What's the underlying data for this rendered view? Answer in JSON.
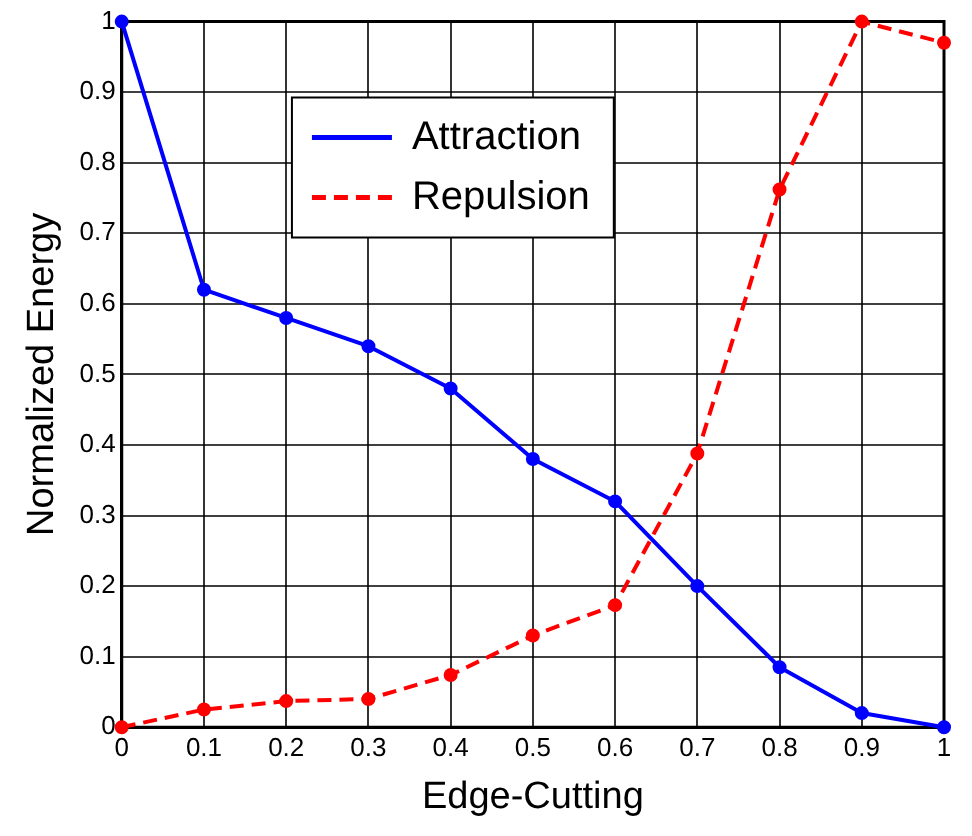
{
  "chart_data": {
    "type": "line",
    "xlabel": "Edge-Cutting",
    "ylabel": "Normalized Energy",
    "x": [
      0,
      0.1,
      0.2,
      0.3,
      0.4,
      0.5,
      0.6,
      0.7,
      0.8,
      0.9,
      1
    ],
    "series": [
      {
        "name": "Attraction",
        "color": "#0000ff",
        "line_style": "solid",
        "values": [
          1,
          0.62,
          0.58,
          0.54,
          0.48,
          0.38,
          0.32,
          0.2,
          0.085,
          0.02,
          0
        ]
      },
      {
        "name": "Repulsion",
        "color": "#ff0000",
        "line_style": "dashed",
        "values": [
          0,
          0.025,
          0.037,
          0.04,
          0.074,
          0.13,
          0.173,
          0.388,
          0.762,
          1,
          0.97
        ]
      }
    ],
    "xlim": [
      0,
      1
    ],
    "xticks": [
      0,
      0.1,
      0.2,
      0.3,
      0.4,
      0.5,
      0.6,
      0.7,
      0.8,
      0.9,
      1
    ],
    "ylim": [
      0,
      1
    ],
    "yticks": [
      0,
      0.1,
      0.2,
      0.3,
      0.4,
      0.5,
      0.6,
      0.7,
      0.8,
      0.9,
      1
    ],
    "grid": true,
    "legend": "top",
    "marker": "circle"
  }
}
